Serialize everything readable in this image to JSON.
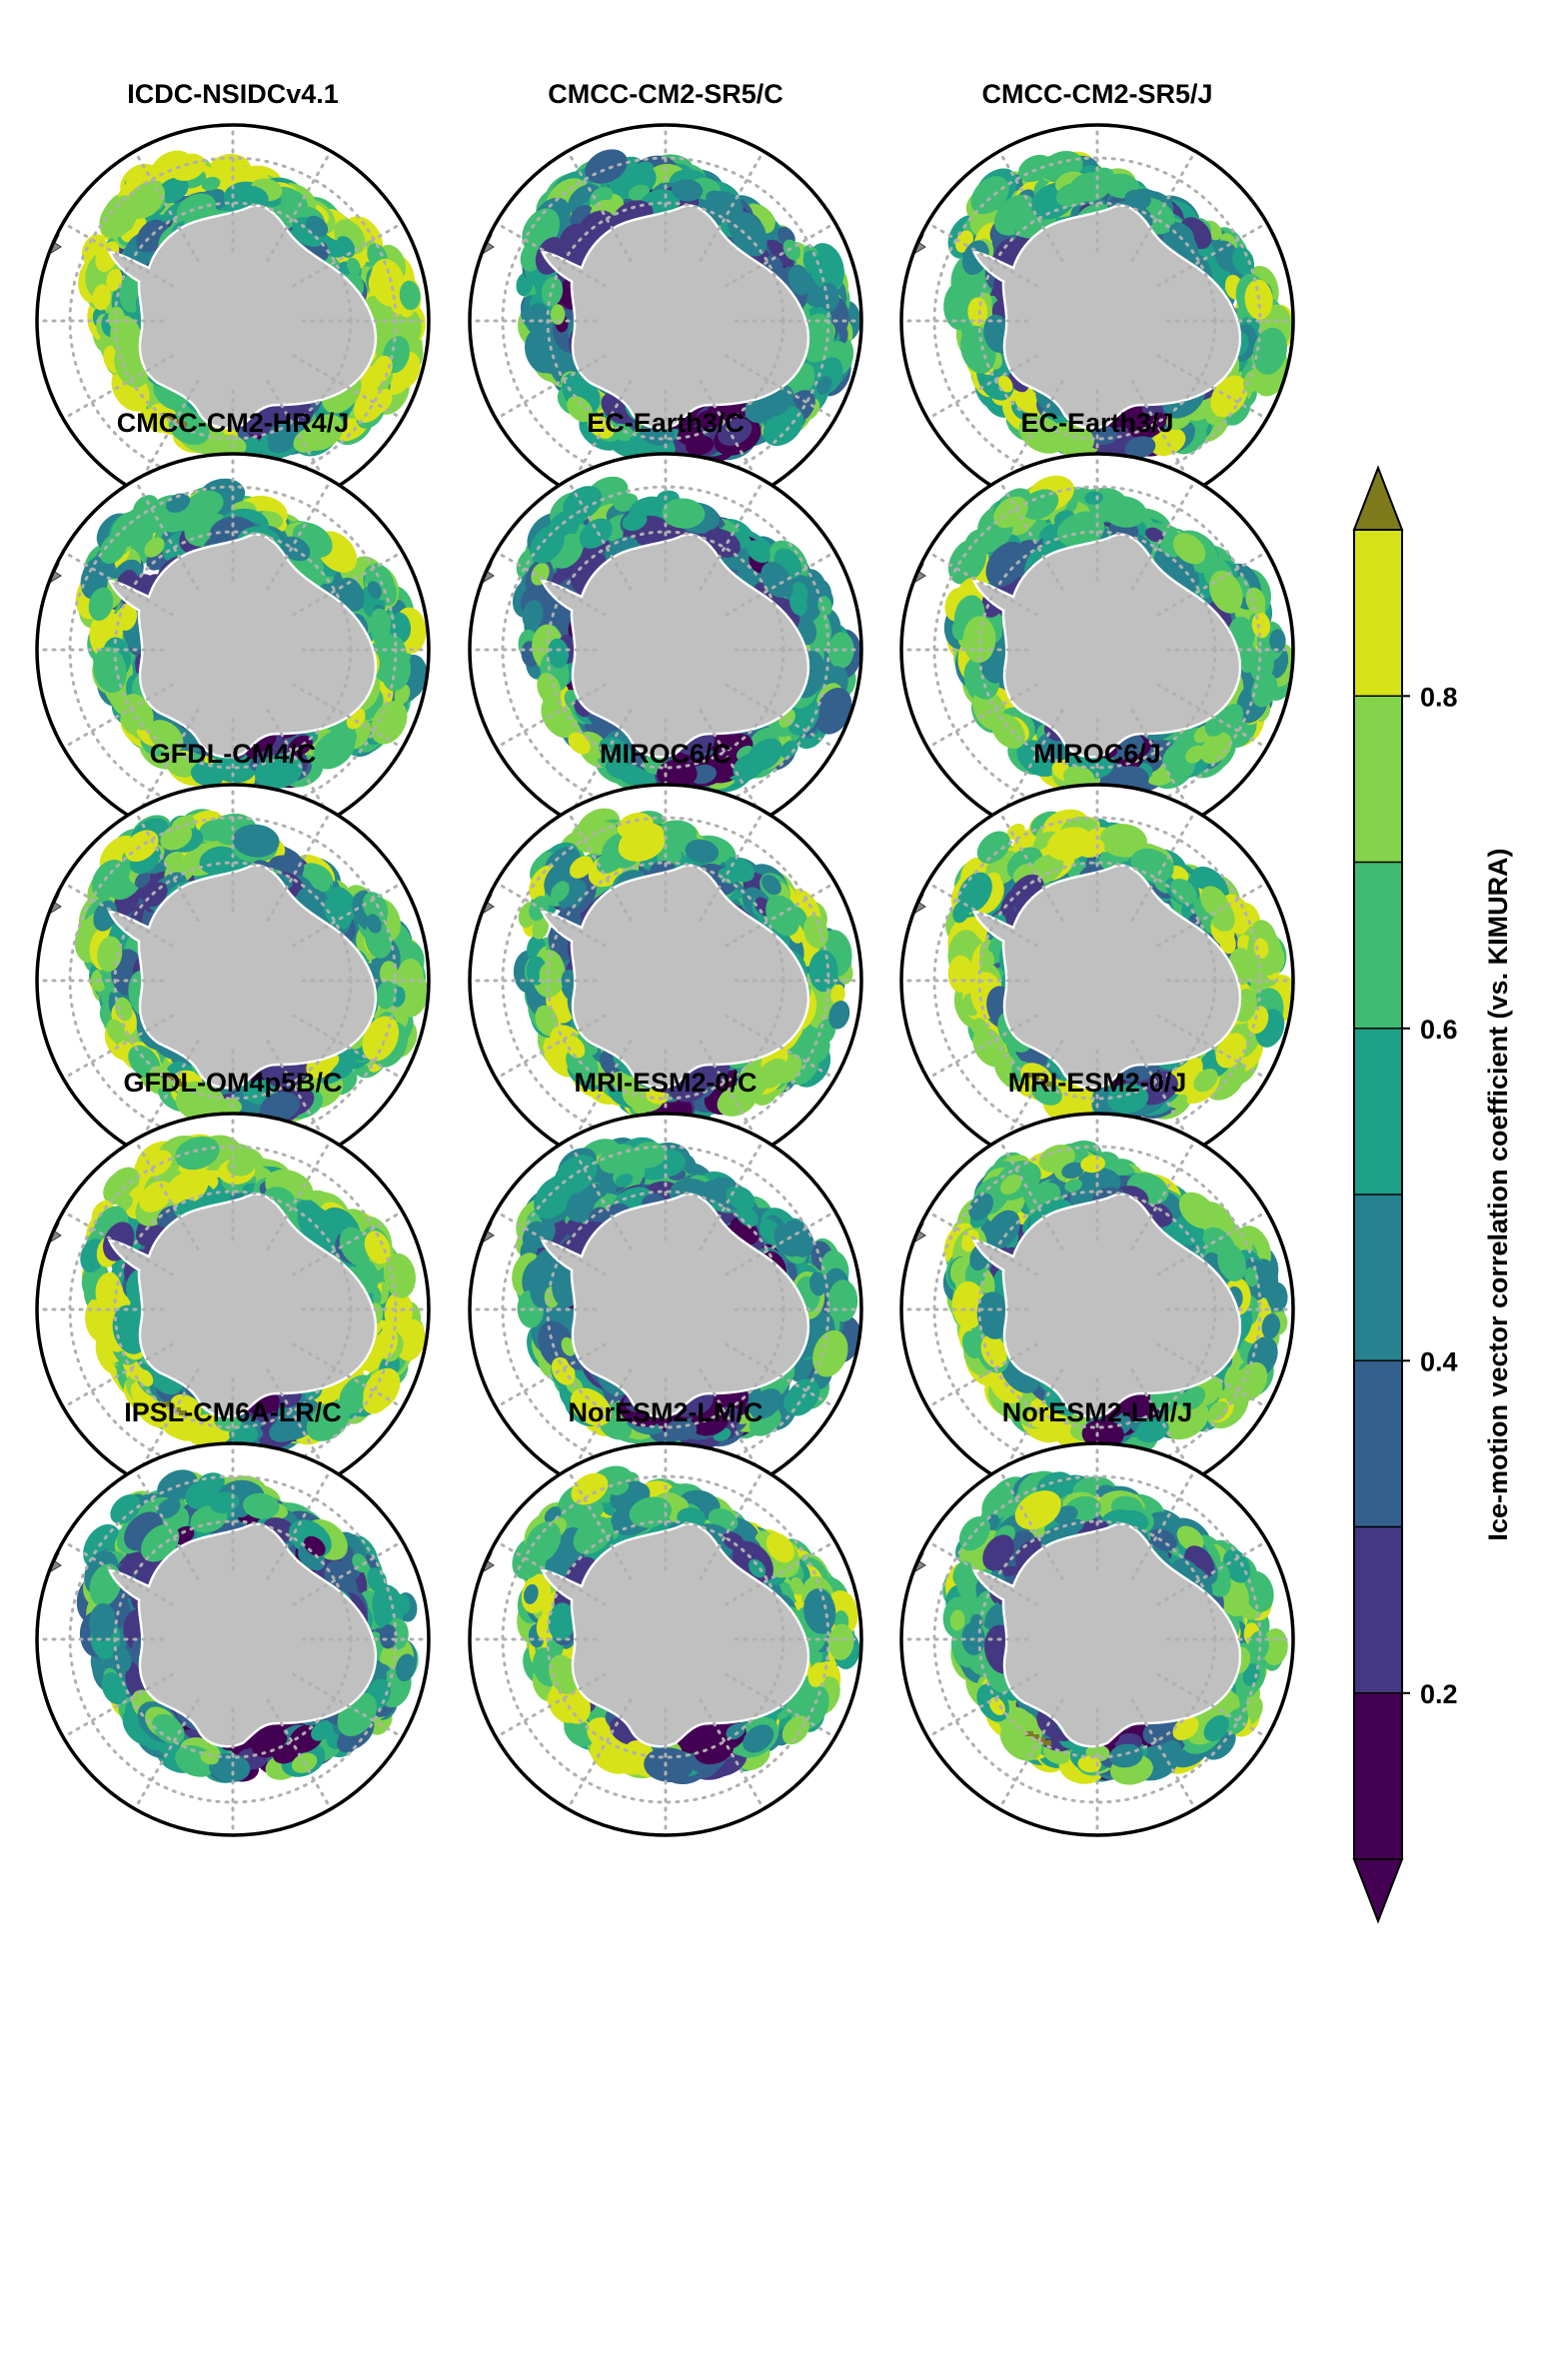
{
  "figure": {
    "panels": [
      {
        "title": "ICDC-NSIDCv4.1",
        "level": "high"
      },
      {
        "title": "CMCC-CM2-SR5/C",
        "level": "mid"
      },
      {
        "title": "CMCC-CM2-SR5/J",
        "level": "midhigh"
      },
      {
        "title": "CMCC-CM2-HR4/J",
        "level": "midhigh"
      },
      {
        "title": "EC-Earth3/C",
        "level": "mid"
      },
      {
        "title": "EC-Earth3/J",
        "level": "midhigh"
      },
      {
        "title": "GFDL-CM4/C",
        "level": "midhigh"
      },
      {
        "title": "MIROC6/C",
        "level": "midhigh"
      },
      {
        "title": "MIROC6/J",
        "level": "high"
      },
      {
        "title": "GFDL-OM4p5B/C",
        "level": "high"
      },
      {
        "title": "MRI-ESM2-0/C",
        "level": "mid"
      },
      {
        "title": "MRI-ESM2-0/J",
        "level": "midhigh"
      },
      {
        "title": "IPSL-CM6A-LR/C",
        "level": "mid"
      },
      {
        "title": "NorESM2-LM/C",
        "level": "midhigh"
      },
      {
        "title": "NorESM2-LM/J",
        "level": "midhigh"
      }
    ],
    "colorbar": {
      "title": "Ice-motion vector correlation coefficient (vs. KIMURA)",
      "ticks": [
        "0.2",
        "0.4",
        "0.6",
        "0.8"
      ],
      "min": 0.1,
      "max": 0.9,
      "step": 0.1,
      "extend": "both",
      "colors": [
        "#440154",
        "#453882",
        "#34608d",
        "#26828e",
        "#1fa088",
        "#3fbc73",
        "#84d44b",
        "#d8e219"
      ],
      "under_color": "#440154",
      "over_color": "#7f7a1c"
    },
    "land_color": "#c0c0c0",
    "grid_color": "#b0b0b0"
  }
}
